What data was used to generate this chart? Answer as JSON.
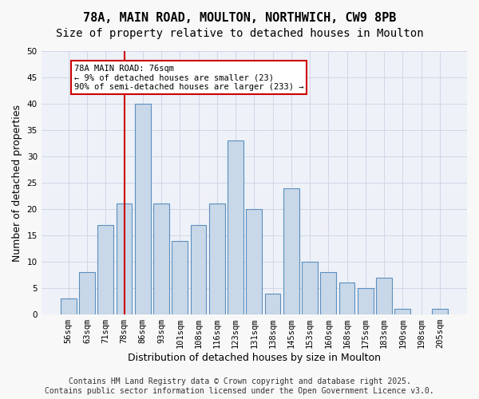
{
  "title1": "78A, MAIN ROAD, MOULTON, NORTHWICH, CW9 8PB",
  "title2": "Size of property relative to detached houses in Moulton",
  "xlabel": "Distribution of detached houses by size in Moulton",
  "ylabel": "Number of detached properties",
  "categories": [
    "56sqm",
    "63sqm",
    "71sqm",
    "78sqm",
    "86sqm",
    "93sqm",
    "101sqm",
    "108sqm",
    "116sqm",
    "123sqm",
    "131sqm",
    "138sqm",
    "145sqm",
    "153sqm",
    "160sqm",
    "168sqm",
    "175sqm",
    "183sqm",
    "190sqm",
    "198sqm",
    "205sqm"
  ],
  "values": [
    3,
    8,
    17,
    21,
    40,
    21,
    14,
    17,
    21,
    33,
    20,
    4,
    24,
    10,
    8,
    6,
    5,
    7,
    1,
    0,
    1
  ],
  "bar_color": "#c8d8e8",
  "bar_edge_color": "#5a8fc0",
  "vline_x": 3.0,
  "vline_color": "#cc0000",
  "annotation_text": "78A MAIN ROAD: 76sqm\n← 9% of detached houses are smaller (23)\n90% of semi-detached houses are larger (233) →",
  "annotation_box_color": "#ffffff",
  "annotation_box_edge": "#cc0000",
  "ylim": [
    0,
    50
  ],
  "yticks": [
    0,
    5,
    10,
    15,
    20,
    25,
    30,
    35,
    40,
    45,
    50
  ],
  "grid_color": "#d0d8e8",
  "background_color": "#eef2f8",
  "fig_background": "#f8f8f8",
  "footer": "Contains HM Land Registry data © Crown copyright and database right 2025.\nContains public sector information licensed under the Open Government Licence v3.0.",
  "title_fontsize": 11,
  "subtitle_fontsize": 10,
  "axis_label_fontsize": 9,
  "tick_fontsize": 7.5,
  "footer_fontsize": 7
}
